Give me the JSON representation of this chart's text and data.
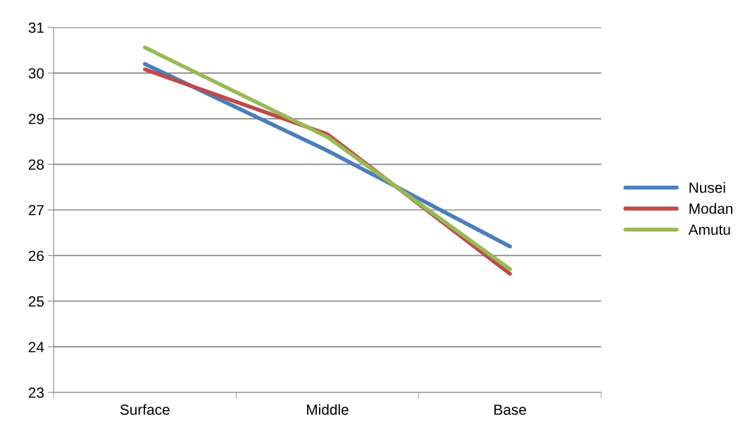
{
  "chart_data": {
    "type": "line",
    "categories": [
      "Surface",
      "Middle",
      "Base"
    ],
    "series": [
      {
        "name": "Nusei",
        "color": "#4a7ebb",
        "values": [
          30.2,
          28.3,
          26.2
        ]
      },
      {
        "name": "Modan",
        "color": "#be4b48",
        "values": [
          30.08,
          28.66,
          25.6
        ]
      },
      {
        "name": "Amutu",
        "color": "#98b954",
        "values": [
          30.56,
          28.6,
          25.7
        ]
      }
    ],
    "ylim": [
      23,
      31
    ],
    "yticks": [
      23,
      24,
      25,
      26,
      27,
      28,
      29,
      30,
      31
    ],
    "grid": "y",
    "legend": "right",
    "marker": "none",
    "line_style": "solid"
  }
}
